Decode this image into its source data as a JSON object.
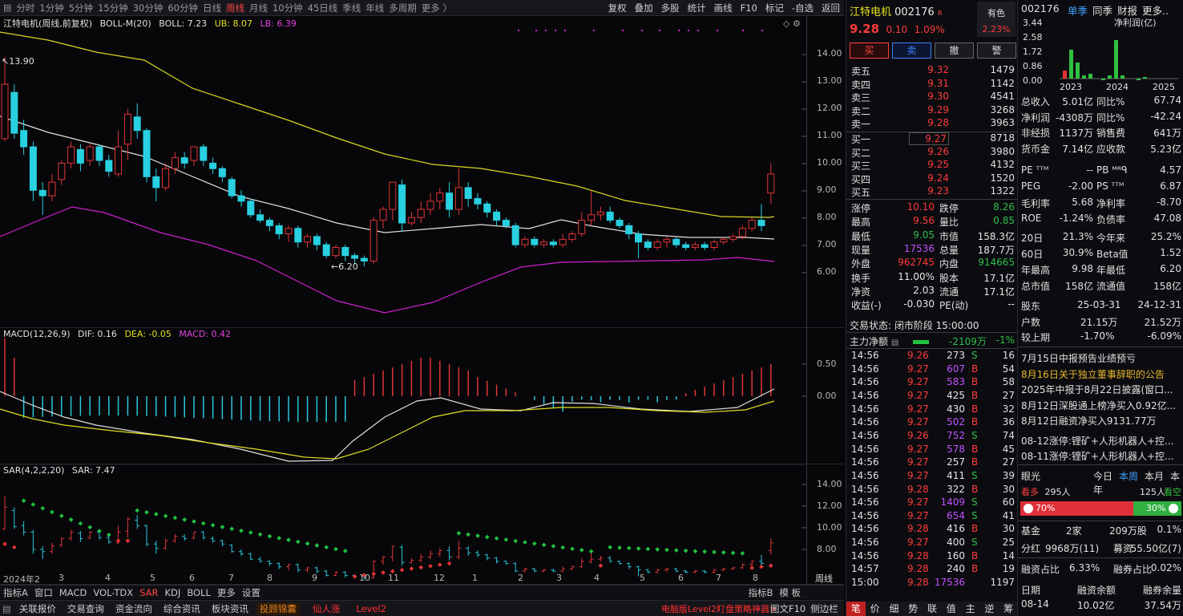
{
  "toolbar": {
    "periods": [
      "分时",
      "1分钟",
      "5分钟",
      "15分钟",
      "30分钟",
      "60分钟",
      "日线",
      "周线",
      "月线",
      "10分钟",
      "45日线",
      "季线",
      "年线",
      "多周期",
      "更多 〉"
    ],
    "active_period": "周线",
    "actions": [
      "复权",
      "叠加",
      "多股",
      "统计",
      "画线",
      "F10",
      "标记",
      "-自选",
      "返回"
    ]
  },
  "main_chart": {
    "title": "江特电机(周线,前复权)",
    "indicator": "BOLL-M(20)",
    "boll": "BOLL: 7.23",
    "ub": "UB: 8.07",
    "lb": "LB: 6.39",
    "y_ticks": [
      "14.00",
      "13.00",
      "12.00",
      "11.00",
      "10.00",
      "9.00",
      "8.00",
      "7.00",
      "6.00"
    ],
    "high_note": "13.90",
    "low_note": "6.20"
  },
  "macd_chart": {
    "title": "MACD(12,26,9)",
    "dif": "DIF: 0.16",
    "dea": "DEA: -0.05",
    "macd": "MACD: 0.42",
    "y_ticks": [
      "0.50",
      "0.00"
    ]
  },
  "sar_chart": {
    "title": "SAR(4,2,2,20)",
    "value": "SAR: 7.47",
    "y_ticks": [
      "14.00",
      "12.00",
      "10.00",
      "8.00"
    ]
  },
  "x_axis": {
    "labels": [
      "2024年2",
      "3",
      "4",
      "5",
      "6",
      "7",
      "8",
      "9",
      "10",
      "11",
      "12",
      "1",
      "2",
      "3",
      "4",
      "5",
      "6",
      "7",
      "8"
    ],
    "corner": "周线"
  },
  "indicator_tabs": [
    "指标A",
    "窗口",
    "MACD",
    "VOL-TDX",
    "SAR",
    "KDJ",
    "BOLL",
    "更多",
    "设置"
  ],
  "indicator_tabs_active": "SAR",
  "indicator_tabs_right": [
    "指标B",
    "模 板"
  ],
  "bottombar": {
    "items": [
      "关联报价",
      "交易查询",
      "资金流向",
      "综合资讯",
      "板块资讯"
    ],
    "highlight": "投顾锦囊",
    "red_items": [
      "仙人涨",
      "Level2"
    ],
    "promo": "电脑版Level2盯盘策略神器>",
    "right": [
      "图文F10",
      "侧边栏"
    ]
  },
  "quote": {
    "name": "江特电机",
    "code": "002176",
    "badge": "有色",
    "badge_pct": "2.23%",
    "price": "9.28",
    "change": "0.10",
    "change_pct": "1.09%",
    "buttons": [
      "买",
      "卖",
      "撤",
      "警"
    ],
    "asks": [
      {
        "label": "卖五",
        "price": "9.32",
        "vol": "1479"
      },
      {
        "label": "卖四",
        "price": "9.31",
        "vol": "1142"
      },
      {
        "label": "卖三",
        "price": "9.30",
        "vol": "4541"
      },
      {
        "label": "卖二",
        "price": "9.29",
        "vol": "3268"
      },
      {
        "label": "卖一",
        "price": "9.28",
        "vol": "3963"
      }
    ],
    "bids": [
      {
        "label": "买一",
        "price": "9.27",
        "vol": "8718"
      },
      {
        "label": "买二",
        "price": "9.26",
        "vol": "3980"
      },
      {
        "label": "买三",
        "price": "9.25",
        "vol": "4132"
      },
      {
        "label": "买四",
        "price": "9.24",
        "vol": "1520"
      },
      {
        "label": "买五",
        "price": "9.23",
        "vol": "1322"
      }
    ],
    "stats": [
      {
        "l1": "涨停",
        "v1": "10.10",
        "c1": "up",
        "l2": "跌停",
        "v2": "8.26",
        "c2": "down"
      },
      {
        "l1": "最高",
        "v1": "9.56",
        "c1": "up",
        "l2": "量比",
        "v2": "0.85",
        "c2": "down"
      },
      {
        "l1": "最低",
        "v1": "9.05",
        "c1": "down",
        "l2": "市值",
        "v2": "158.3亿",
        "c2": "white"
      },
      {
        "l1": "现量",
        "v1": "17536",
        "c1": "purple",
        "l2": "总量",
        "v2": "187.7万",
        "c2": "white"
      },
      {
        "l1": "外盘",
        "v1": "962745",
        "c1": "up",
        "l2": "内盘",
        "v2": "914665",
        "c2": "down"
      },
      {
        "l1": "换手",
        "v1": "11.00%",
        "c1": "white",
        "l2": "股本",
        "v2": "17.1亿",
        "c2": "white"
      },
      {
        "l1": "净资",
        "v1": "2.03",
        "c1": "white",
        "l2": "流通",
        "v2": "17.1亿",
        "c2": "white"
      },
      {
        "l1": "收益(-)",
        "v1": "-0.030",
        "c1": "white",
        "l2": "PE(动)",
        "v2": "--",
        "c2": "white"
      }
    ],
    "status": "交易状态: 闭市阶段 15:00:00",
    "main_flow_label": "主力净额",
    "main_flow_value": "-2109万",
    "main_flow_pct": "-1%",
    "ticks": [
      {
        "t": "14:56",
        "p": "9.26",
        "v": "273",
        "s": "S",
        "n": "16"
      },
      {
        "t": "14:56",
        "p": "9.27",
        "v": "607",
        "s": "B",
        "n": "54"
      },
      {
        "t": "14:56",
        "p": "9.27",
        "v": "583",
        "s": "B",
        "n": "58"
      },
      {
        "t": "14:56",
        "p": "9.27",
        "v": "425",
        "s": "B",
        "n": "27"
      },
      {
        "t": "14:56",
        "p": "9.27",
        "v": "430",
        "s": "B",
        "n": "32"
      },
      {
        "t": "14:56",
        "p": "9.27",
        "v": "502",
        "s": "B",
        "n": "36"
      },
      {
        "t": "14:56",
        "p": "9.26",
        "v": "752",
        "s": "S",
        "n": "74"
      },
      {
        "t": "14:56",
        "p": "9.27",
        "v": "578",
        "s": "B",
        "n": "45"
      },
      {
        "t": "14:56",
        "p": "9.27",
        "v": "257",
        "s": "B",
        "n": "27"
      },
      {
        "t": "14:56",
        "p": "9.27",
        "v": "411",
        "s": "S",
        "n": "39"
      },
      {
        "t": "14:56",
        "p": "9.28",
        "v": "322",
        "s": "B",
        "n": "30"
      },
      {
        "t": "14:56",
        "p": "9.27",
        "v": "1409",
        "s": "S",
        "n": "60"
      },
      {
        "t": "14:56",
        "p": "9.27",
        "v": "654",
        "s": "S",
        "n": "41"
      },
      {
        "t": "14:56",
        "p": "9.28",
        "v": "416",
        "s": "B",
        "n": "30"
      },
      {
        "t": "14:56",
        "p": "9.27",
        "v": "400",
        "s": "S",
        "n": "25"
      },
      {
        "t": "14:56",
        "p": "9.28",
        "v": "160",
        "s": "B",
        "n": "14"
      },
      {
        "t": "14:57",
        "p": "9.28",
        "v": "240",
        "s": "B",
        "n": "19"
      },
      {
        "t": "15:00",
        "p": "9.28",
        "v": "17536",
        "s": "",
        "n": "1197"
      }
    ],
    "bottom_tabs": [
      "笔",
      "价",
      "细",
      "势",
      "联",
      "值",
      "主",
      "逆",
      "筹"
    ]
  },
  "info": {
    "code": "002176",
    "tabs": [
      "单季",
      "同季",
      "财报",
      "更多.."
    ],
    "chart_label": "净利润(亿)",
    "chart_y": [
      "3.44",
      "2.58",
      "1.72",
      "0.86",
      "0.00"
    ],
    "chart_x": [
      "2023",
      "2024",
      "2025"
    ],
    "fin_rows": [
      {
        "l1": "总收入",
        "v1": "5.01亿",
        "l2": "同比%",
        "v2": "67.74"
      },
      {
        "l1": "净利润",
        "v1": "-4308万",
        "l2": "同比%",
        "v2": "-42.24"
      },
      {
        "l1": "非经损",
        "v1": "1137万",
        "l2": "销售费",
        "v2": "641万"
      },
      {
        "l1": "货币金",
        "v1": "7.14亿",
        "l2": "应收款",
        "v2": "5.23亿"
      }
    ],
    "val_rows": [
      {
        "l1": "PE ᵀᵀᴹ",
        "v1": "--",
        "l2": "PB ᴹᴿᑫ",
        "v2": "4.57"
      },
      {
        "l1": "PEG",
        "v1": "-2.00",
        "l2": "PS ᵀᵀᴹ",
        "v2": "6.87"
      },
      {
        "l1": "毛利率",
        "v1": "5.68",
        "l2": "净利率",
        "v2": "-8.70"
      },
      {
        "l1": "ROE",
        "v1": "-1.24%",
        "l2": "负债率",
        "v2": "47.08"
      }
    ],
    "perf_rows": [
      {
        "l1": "20日",
        "v1": "21.3%",
        "l2": "今年来",
        "v2": "25.2%"
      },
      {
        "l1": "60日",
        "v1": "30.9%",
        "l2": "Beta值",
        "v2": "1.52"
      },
      {
        "l1": "年最高",
        "v1": "9.98",
        "l2": "年最低",
        "v2": "6.20"
      },
      {
        "l1": "总市值",
        "v1": "158亿",
        "l2": "流通值",
        "v2": "158亿"
      }
    ],
    "holder_header": {
      "l": "股东",
      "d1": "25-03-31",
      "d2": "24-12-31"
    },
    "holder_rows": [
      {
        "l": "户数",
        "v1": "21.15万",
        "v2": "21.52万"
      },
      {
        "l": "较上期",
        "v1": "-1.70%",
        "v2": "-6.09%"
      }
    ],
    "news": [
      "7月15日中报预告业绩预亏",
      "8月16日关于独立董事辞职的公告",
      "2025年中报于8月22日披露(窗口...",
      "8月12日深股通上榜净买入0.92亿...",
      "8月12日融资净买入9131.77万"
    ],
    "concepts": [
      "08-12涨停:锂矿+人形机器人+控...",
      "08-11涨停:锂矿+人形机器人+控..."
    ],
    "eye_label": "眼光",
    "eye_tabs": [
      "今日",
      "本周",
      "本月",
      "本年"
    ],
    "bull_label": "看多",
    "bull_count": "295人",
    "bear_count": "125人",
    "bear_label": "看空",
    "bull_pct": "70%",
    "bear_pct": "30%",
    "fund_label": "基金",
    "fund_count": "2家",
    "fund_shares": "209万股",
    "fund_pct": "0.1%",
    "div_label": "分红",
    "div_value": "9968万(11)",
    "raise_label": "募资",
    "raise_value": "55.50亿(7)",
    "margin_label": "融资占比",
    "margin_value": "6.33%",
    "short_label": "融券占比",
    "short_value": "0.02%",
    "date_label": "日期",
    "date_value": "08-14",
    "fin_bal_label": "融资余额",
    "fin_bal_value": "10.02亿",
    "short_bal_label": "融券余量",
    "short_bal_value": "37.54万"
  },
  "colors": {
    "up": "#ff3b3b",
    "down": "#2fbf4a",
    "boll_upper": "#d8d820",
    "boll_mid": "#e0e0e0",
    "boll_lower": "#d020d0",
    "candle_up": "#e03535",
    "candle_down": "#28d0e0"
  }
}
